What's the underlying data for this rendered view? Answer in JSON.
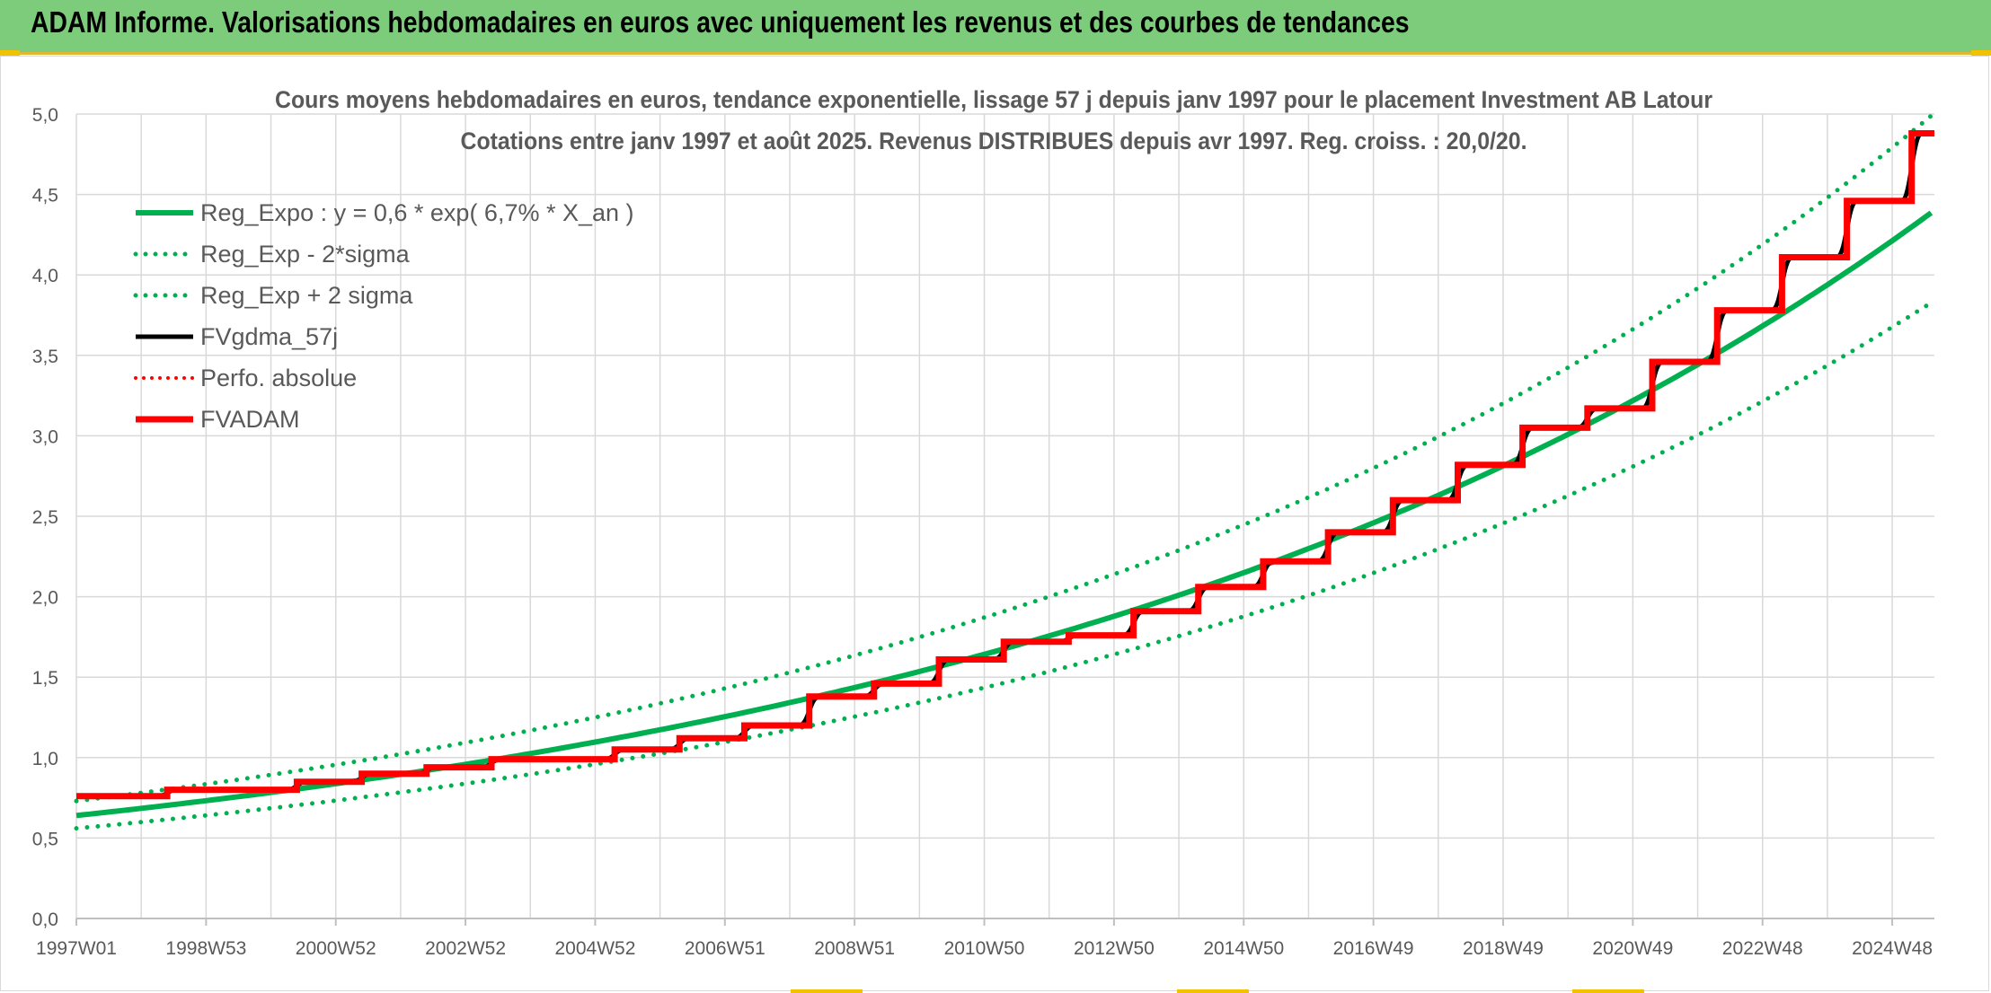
{
  "banner": {
    "title": "ADAM Informe. Valorisations hebdomadaires en euros avec uniquement les revenus et des courbes de tendances"
  },
  "colors": {
    "banner_bg": "#7ccc7c",
    "trend": "#00b050",
    "fv_gdma": "#000000",
    "fvadam": "#ff0000",
    "grid": "#d9d9d9"
  },
  "chart_data": {
    "type": "line",
    "title_line1": "Cours moyens hebdomadaires en euros, tendance exponentielle, lissage 57 j depuis janv 1997 pour le placement Investment AB Latour",
    "title_line2": "Cotations entre janv 1997 et août 2025. Revenus DISTRIBUES depuis avr 1997. Reg. croiss. : 20,0/20.",
    "x_tick_labels": [
      "1997W01",
      "1998W53",
      "2000W52",
      "2002W52",
      "2004W52",
      "2006W51",
      "2008W51",
      "2010W50",
      "2012W50",
      "2014W50",
      "2016W49",
      "2018W49",
      "2020W49",
      "2022W48",
      "2024W48"
    ],
    "x_range_years": [
      1997.0,
      2025.65
    ],
    "ylim": [
      0,
      5
    ],
    "y_tick_labels": [
      "0,0",
      "0,5",
      "1,0",
      "1,5",
      "2,0",
      "2,5",
      "3,0",
      "3,5",
      "4,0",
      "4,5",
      "5,0"
    ],
    "grid": true,
    "legend_position": "top-left",
    "legend": [
      {
        "label": "Reg_Expo : y = 0,6 * exp( 6,7% *  X_an )",
        "style": "solid-green"
      },
      {
        "label": "Reg_Exp - 2*sigma",
        "style": "dotted-green"
      },
      {
        "label": "Reg_Exp + 2 sigma",
        "style": "dotted-green"
      },
      {
        "label": "FVgdma_57j",
        "style": "solid-black"
      },
      {
        "label": "Perfo. absolue",
        "style": "dotted-red"
      },
      {
        "label": "FVADAM",
        "style": "solid-red-thick"
      }
    ],
    "series": [
      {
        "name": "Reg_Expo : y = 0,6 * exp( 6,7% *  X_an )",
        "x": [
          1997.0,
          2001.0,
          2005.0,
          2009.0,
          2013.0,
          2017.0,
          2021.0,
          2025.65
        ],
        "y": [
          0.64,
          0.84,
          1.1,
          1.45,
          1.9,
          2.48,
          3.27,
          4.35
        ]
      },
      {
        "name": "Reg_Exp - 2*sigma",
        "x": [
          1997.0,
          2001.0,
          2005.0,
          2009.0,
          2013.0,
          2017.0,
          2021.0,
          2025.65
        ],
        "y": [
          0.56,
          0.74,
          0.96,
          1.27,
          1.66,
          2.18,
          2.86,
          3.83
        ]
      },
      {
        "name": "Reg_Exp + 2 sigma",
        "x": [
          1997.0,
          2001.0,
          2005.0,
          2009.0,
          2013.0,
          2017.0,
          2021.0,
          2025.65
        ],
        "y": [
          0.73,
          0.96,
          1.26,
          1.66,
          2.17,
          2.85,
          3.74,
          4.9
        ]
      },
      {
        "name": "FVADAM",
        "x": [
          1997.0,
          1998.4,
          2000.4,
          2001.4,
          2002.4,
          2003.4,
          2005.3,
          2006.3,
          2007.3,
          2008.3,
          2009.3,
          2010.3,
          2011.3,
          2012.3,
          2013.3,
          2014.3,
          2015.3,
          2016.3,
          2017.3,
          2018.3,
          2019.3,
          2020.3,
          2021.3,
          2022.3,
          2023.3,
          2024.3,
          2025.3,
          2025.65
        ],
        "y": [
          0.76,
          0.8,
          0.85,
          0.9,
          0.94,
          0.99,
          1.05,
          1.12,
          1.2,
          1.38,
          1.46,
          1.61,
          1.72,
          1.76,
          1.91,
          2.06,
          2.22,
          2.4,
          2.6,
          2.82,
          3.05,
          3.17,
          3.46,
          3.78,
          4.11,
          4.46,
          4.88,
          4.88
        ]
      }
    ]
  }
}
